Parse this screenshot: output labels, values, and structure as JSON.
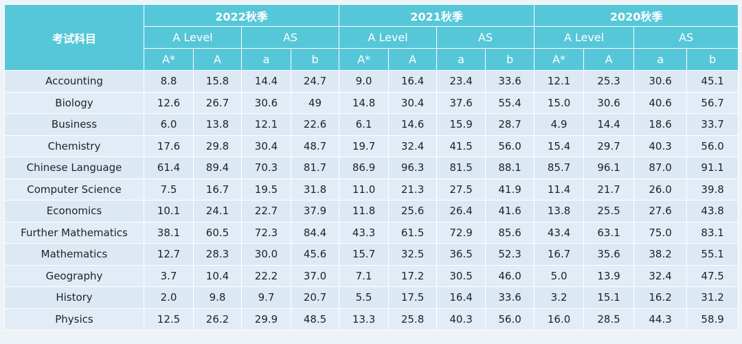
{
  "table": {
    "subject_header": "考试科目",
    "years": [
      "2022秋季",
      "2021秋季",
      "2020秋季"
    ],
    "levels": [
      "A Level",
      "AS"
    ],
    "grades": [
      "A*",
      "A",
      "a",
      "b"
    ],
    "rows": [
      {
        "subject": "Accounting",
        "values": [
          "8.8",
          "15.8",
          "14.4",
          "24.7",
          "9.0",
          "16.4",
          "23.4",
          "33.6",
          "12.1",
          "25.3",
          "30.6",
          "45.1"
        ]
      },
      {
        "subject": "Biology",
        "values": [
          "12.6",
          "26.7",
          "30.6",
          "49",
          "14.8",
          "30.4",
          "37.6",
          "55.4",
          "15.0",
          "30.6",
          "40.6",
          "56.7"
        ]
      },
      {
        "subject": "Business",
        "values": [
          "6.0",
          "13.8",
          "12.1",
          "22.6",
          "6.1",
          "14.6",
          "15.9",
          "28.7",
          "4.9",
          "14.4",
          "18.6",
          "33.7"
        ]
      },
      {
        "subject": "Chemistry",
        "values": [
          "17.6",
          "29.8",
          "30.4",
          "48.7",
          "19.7",
          "32.4",
          "41.5",
          "56.0",
          "15.4",
          "29.7",
          "40.3",
          "56.0"
        ]
      },
      {
        "subject": "Chinese Language",
        "values": [
          "61.4",
          "89.4",
          "70.3",
          "81.7",
          "86.9",
          "96.3",
          "81.5",
          "88.1",
          "85.7",
          "96.1",
          "87.0",
          "91.1"
        ]
      },
      {
        "subject": "Computer Science",
        "values": [
          "7.5",
          "16.7",
          "19.5",
          "31.8",
          "11.0",
          "21.3",
          "27.5",
          "41.9",
          "11.4",
          "21.7",
          "26.0",
          "39.8"
        ]
      },
      {
        "subject": "Economics",
        "values": [
          "10.1",
          "24.1",
          "22.7",
          "37.9",
          "11.8",
          "25.6",
          "26.4",
          "41.6",
          "13.8",
          "25.5",
          "27.6",
          "43.8"
        ]
      },
      {
        "subject": "Further Mathematics",
        "values": [
          "38.1",
          "60.5",
          "72.3",
          "84.4",
          "43.3",
          "61.5",
          "72.9",
          "85.6",
          "43.4",
          "63.1",
          "75.0",
          "83.1"
        ]
      },
      {
        "subject": "Mathematics",
        "values": [
          "12.7",
          "28.3",
          "30.0",
          "45.6",
          "15.7",
          "32.5",
          "36.5",
          "52.3",
          "16.7",
          "35.6",
          "38.2",
          "55.1"
        ]
      },
      {
        "subject": "Geography",
        "values": [
          "3.7",
          "10.4",
          "22.2",
          "37.0",
          "7.1",
          "17.2",
          "30.5",
          "46.0",
          "5.0",
          "13.9",
          "32.4",
          "47.5"
        ]
      },
      {
        "subject": "History",
        "values": [
          "2.0",
          "9.8",
          "9.7",
          "20.7",
          "5.5",
          "17.5",
          "16.4",
          "33.6",
          "3.2",
          "15.1",
          "16.2",
          "31.2"
        ]
      },
      {
        "subject": "Physics",
        "values": [
          "12.5",
          "26.2",
          "29.9",
          "48.5",
          "13.3",
          "25.8",
          "40.3",
          "56.0",
          "16.0",
          "28.5",
          "44.3",
          "58.9"
        ]
      }
    ]
  },
  "colors": {
    "header_bg": "#56c7d9",
    "header_text": "#ffffff",
    "body_bg": "#dce9f4"
  }
}
